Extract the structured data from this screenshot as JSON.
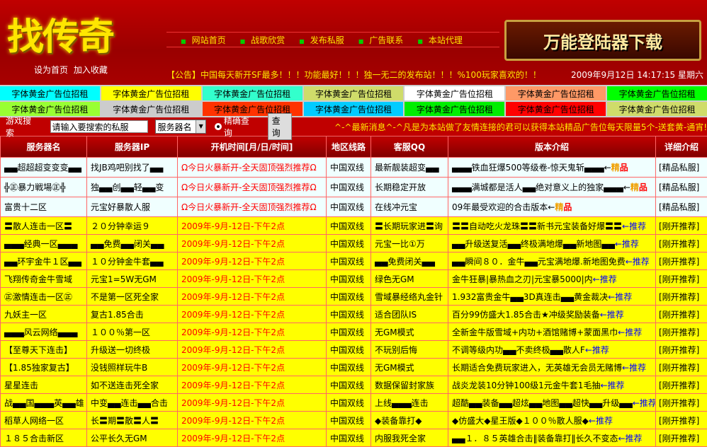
{
  "header": {
    "logo": "找传奇",
    "set_home": "设为首页",
    "bookmark": "加入收藏",
    "nav": [
      "网站首页",
      "战歌欣赏",
      "发布私服",
      "广告联系",
      "本站代理"
    ],
    "login_banner": "万能登陆器下载",
    "notice": "【公告】中国每天新开SF最多！！！功能最好！！！独一无二的发布站！！！%100玩家喜欢的！！",
    "datetime": "2009年9月12日 14:17:15 星期六"
  },
  "ads": [
    {
      "label": "字体黄金广告位招租",
      "color": "#00ffff"
    },
    {
      "label": "字体黄金广告位招租",
      "color": "#ffff00"
    },
    {
      "label": "字体黄金广告位招租",
      "color": "#33ffcc"
    },
    {
      "label": "字体黄金广告位招租",
      "color": "#cfdc6a"
    },
    {
      "label": "字体黄金广告位招租",
      "color": "#ffffff"
    },
    {
      "label": "字体黄金广告位招租",
      "color": "#ff9966"
    },
    {
      "label": "字体黄金广告位招租",
      "color": "#00ff00"
    },
    {
      "label": "字体黄金广告位招租",
      "color": "#99ff33"
    },
    {
      "label": "字体黄金广告位招租",
      "color": "#cccccc"
    },
    {
      "label": "字体黄金广告位招租",
      "color": "#ff3300"
    },
    {
      "label": "字体黄金广告位招租",
      "color": "#00ccff"
    },
    {
      "label": "字体黄金广告位招租",
      "color": "#00ee00"
    },
    {
      "label": "字体黄金广告位招租",
      "color": "#ff0000"
    },
    {
      "label": "字体黄金广告位招租",
      "color": "#cfdc6a"
    }
  ],
  "search": {
    "label": "游戏搜索",
    "placeholder": "请输入要搜索的私服",
    "select": "服务器名",
    "radio": "精确查询",
    "button": "查询",
    "marquee": "^-^最新消息^-^凡是为本站做了友情连接的君可以获得本站精品广告位每天限量5个-送套黄-通宵!"
  },
  "table": {
    "headers": [
      "服务器名",
      "服务器IP",
      "开机时间[月/日/时间]",
      "地区线路",
      "客服QQ",
      "版本介绍",
      "详细介绍"
    ],
    "rows": [
      {
        "type": "light",
        "name": "▄▄超超超变变变▄▄",
        "ip": "找JB鸡吧别找了▄▄",
        "time": "Ω今日火暴新开-全天固顶强烈推荐Ω",
        "line": "中国双线",
        "qq": "最新靓装超变▄▄",
        "intro": "▄▄▄铁血狂爆500等级卷-惊天鬼斩▄▄▄←",
        "badge": "精品",
        "detail": "[精品私服]"
      },
      {
        "type": "light",
        "name": "╬㊣暴力戦場㊣╬",
        "ip": "独▄▄创▄▄轻▄▄变",
        "time": "Ω今日火暴新开-全天固顶强烈推荐Ω",
        "line": "中国双线",
        "qq": "长期稳定开放",
        "intro": "▄▄▄满城都是活人▄▄绝对意义上的独家▄▄▄←",
        "badge": "精品",
        "detail": "[精品私服]"
      },
      {
        "type": "light",
        "name": "富贵十二区",
        "ip": "元宝好暴散人服",
        "time": "Ω今日火暴新开-全天固顶强烈推荐Ω",
        "line": "中国双线",
        "qq": "在线冲元宝",
        "intro": "09年最受欢迎的合击版本←",
        "badge": "精品",
        "detail": "[精品私服]"
      },
      {
        "type": "yel",
        "name": "〓散人连击一区〓",
        "ip": "２０分钟幸运９",
        "time": "2009年-9月-12日-下午2点",
        "line": "中国双线",
        "qq": "〓长期玩家进〓询",
        "intro": "〓〓自动吃火龙珠〓〓新书元宝装备好爆〓〓",
        "badge": "←推荐",
        "detail": "[刚开推荐]"
      },
      {
        "type": "yel",
        "name": "▄▄▄经典一区▄▄▄",
        "ip": "▄▄免费▄▄闭关▄▄",
        "time": "2009年-9月-12日-下午2点",
        "line": "中国双线",
        "qq": "元宝一比①万",
        "intro": "▄▄升级送复活▄▄终极满地爆▄▄新地图▄▄",
        "badge": "←推荐",
        "detail": "[刚开推荐]"
      },
      {
        "type": "yel",
        "name": "▄▄环宇金牛１区▄▄",
        "ip": "１０分钟金牛套▄▄",
        "time": "2009年-9月-12日-下午2点",
        "line": "中国双线",
        "qq": "▄▄免费闭关▄▄",
        "intro": "▄▄瞬间８０．金牛▄▄元宝满地爆.新地图免费",
        "badge": "←推荐",
        "detail": "[刚开推荐]"
      },
      {
        "type": "yel",
        "name": "飞翔传奇金牛雪域",
        "ip": "元宝1=5W无GM",
        "time": "2009年-9月-12日-下午2点",
        "line": "中国双线",
        "qq": "绿色无GM",
        "intro": "金牛狂暴|暴热血之刃|元宝暴5000|内",
        "badge": "←推荐",
        "detail": "[刚开推荐]"
      },
      {
        "type": "yel",
        "name": "㊣激情连击一区㊣",
        "ip": "不是第一区死全家",
        "time": "2009年-9月-12日-下午2点",
        "line": "中国双线",
        "qq": "雪域暴经络丸金针",
        "intro": "1.932富贵金牛▄▄3D真连击▄▄黄金裁决",
        "badge": "←推荐",
        "detail": "[刚开推荐]"
      },
      {
        "type": "yel",
        "name": "九妖主一区",
        "ip": "复古1.85合击",
        "time": "2009年-9月-12日-下午2点",
        "line": "中国双线",
        "qq": "适合团队IS",
        "intro": "百分99仿盛大1.85合击★冲级奖励装备",
        "badge": "←推荐",
        "detail": "[刚开推荐]"
      },
      {
        "type": "yel",
        "name": "▄▄▄风云网络▄▄▄",
        "ip": "１００％第一区",
        "time": "2009年-9月-12日-下午2点",
        "line": "中国双线",
        "qq": "无GM模式",
        "intro": "全新金牛版雪域+内功+酒馆赌博+蒙面黑巾",
        "badge": "←推荐",
        "detail": "[刚开推荐]"
      },
      {
        "type": "yel",
        "name": "【至尊天下连击】",
        "ip": "升级送一切终极",
        "time": "2009年-9月-12日-下午2点",
        "line": "中国双线",
        "qq": "不玩别后悔",
        "intro": "不调等级内功▄▄不卖终极▄▄散人F",
        "badge": "←推荐",
        "detail": "[刚开推荐]"
      },
      {
        "type": "yel",
        "name": "【1.85独家复古】",
        "ip": "没钱照样玩牛B",
        "time": "2009年-9月-12日-下午2点",
        "line": "中国双线",
        "qq": "无GM模式",
        "intro": "长期适合免费玩家进入，无英雄无会员无赌博",
        "badge": "←推荐",
        "detail": "[刚开推荐]"
      },
      {
        "type": "yel",
        "name": "星星连击",
        "ip": "如不送连击死全家",
        "time": "2009年-9月-12日-下午2点",
        "line": "中国双线",
        "qq": "数据保留封家族",
        "intro": "战炎龙装10分钟100级1元金牛套1毛抽",
        "badge": "←推荐",
        "detail": "[刚开推荐]"
      },
      {
        "type": "yel",
        "name": "战▄▄国▄▄▄英▄▄雄",
        "ip": "中变▄▄连击▄▄合击",
        "time": "2009年-9月-12日-下午2点",
        "line": "中国双线",
        "qq": "上线▄▄▄连击",
        "intro": "超酷▄▄装备▄▄超炫▄▄地图▄▄超快▄▄升级▄▄",
        "badge": "←推荐",
        "detail": "[刚开推荐]"
      },
      {
        "type": "yel",
        "name": "稻草人网络一区",
        "ip": "长〓期〓散〓人〓",
        "time": "2009年-9月-12日-下午2点",
        "line": "中国双线",
        "qq": "◆装备靠打◆",
        "intro": "◆仿盛大◆星王版◆１００％散人服◆",
        "badge": "←推荐",
        "detail": "[刚开推荐]"
      },
      {
        "type": "yel",
        "name": "１８５合击新区",
        "ip": "公平长久无GM",
        "time": "2009年-9月-12日-下午2点",
        "line": "中国双线",
        "qq": "内服我死全家",
        "intro": "▄▄１．８５英雄合击‖装备靠打‖长久不变态",
        "badge": "←推荐",
        "detail": "[刚开推荐]"
      }
    ]
  }
}
